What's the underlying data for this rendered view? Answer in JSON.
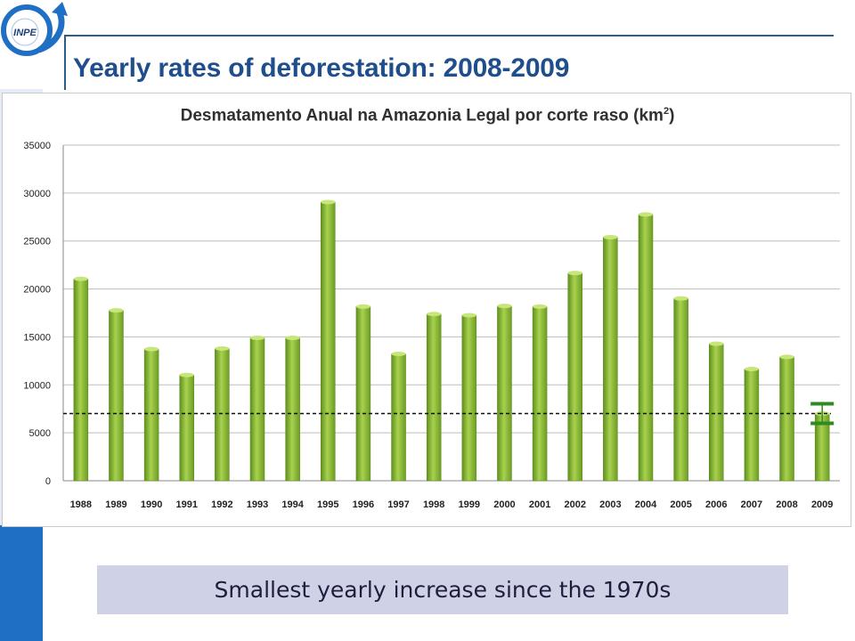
{
  "slide": {
    "logo_text": "INPE",
    "title": "Yearly rates of deforestation: 2008-2009",
    "caption": "Smallest yearly increase since the 1970s"
  },
  "colors": {
    "accent_blue": "#1f6fc4",
    "title_blue": "#1f4e8c",
    "bar_green": "#8dbb3a",
    "bar_green_dark": "#5f8f1e",
    "marker_green": "#2e8b1f",
    "caption_bg": "#cfd2e6"
  },
  "chart_data": {
    "type": "bar",
    "title": "Desmatamento Anual na Amazonia Legal por corte raso (km²)",
    "title_main": "Desmatamento Anual na Amazonia Legal por corte raso (km",
    "title_sup": "2",
    "title_end": ")",
    "categories": [
      "1988",
      "1989",
      "1990",
      "1991",
      "1992",
      "1993",
      "1994",
      "1995",
      "1996",
      "1997",
      "1998",
      "1999",
      "2000",
      "2001",
      "2002",
      "2003",
      "2004",
      "2005",
      "2006",
      "2007",
      "2008",
      "2009"
    ],
    "values": [
      21050,
      17770,
      13730,
      11030,
      13786,
      14896,
      14896,
      29059,
      18161,
      13227,
      17383,
      17259,
      18226,
      18165,
      21651,
      25396,
      27772,
      19014,
      14286,
      11651,
      12911,
      7008
    ],
    "ylim": [
      0,
      35000
    ],
    "yticks": [
      0,
      5000,
      10000,
      15000,
      20000,
      25000,
      30000,
      35000
    ],
    "grid": true,
    "legend": "none",
    "reference_line": 7008,
    "marker_category": "2009"
  }
}
